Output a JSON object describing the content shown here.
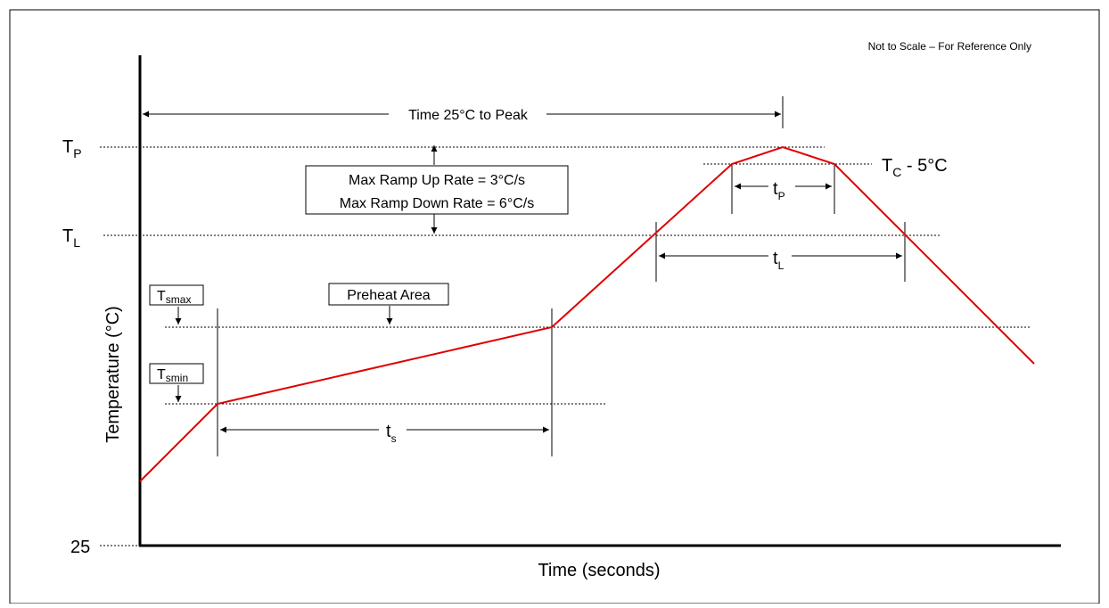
{
  "note": "Not to Scale – For Reference Only",
  "axes": {
    "ylabel": "Temperature (°C)",
    "xlabel": "Time (seconds)",
    "y_origin_label": "25"
  },
  "levels": {
    "tp": {
      "main": "T",
      "sub": "P"
    },
    "tl": {
      "main": "T",
      "sub": "L"
    },
    "tc": {
      "main": "T",
      "sub": "C",
      "suffix": " - 5°C"
    },
    "tsmax": {
      "main": "T",
      "sub": "smax"
    },
    "tsmin": {
      "main": "T",
      "sub": "smin"
    }
  },
  "annotations": {
    "time_to_peak": "Time 25°C to Peak",
    "ramp_up": "Max Ramp Up Rate = 3°C/s",
    "ramp_down": "Max Ramp Down Rate = 6°C/s",
    "preheat": "Preheat Area",
    "ts": {
      "main": "t",
      "sub": "s"
    },
    "tp_dur": {
      "main": "t",
      "sub": "P"
    },
    "tl_dur": {
      "main": "t",
      "sub": "L"
    }
  },
  "colors": {
    "profile": "#e00000",
    "axis": "#000000"
  }
}
